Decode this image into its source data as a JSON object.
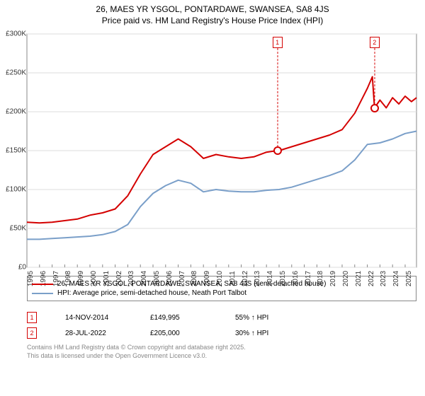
{
  "title_line1": "26, MAES YR YSGOL, PONTARDAWE, SWANSEA, SA8 4JS",
  "title_line2": "Price paid vs. HM Land Registry's House Price Index (HPI)",
  "chart": {
    "type": "line",
    "background_color": "#ffffff",
    "grid_color": "#dddddd",
    "axis_color": "#888888",
    "xlim": [
      1995,
      2025.9
    ],
    "ylim": [
      0,
      300000
    ],
    "ytick_step": 50000,
    "yticks_labels": [
      "£0",
      "£50K",
      "£100K",
      "£150K",
      "£200K",
      "£250K",
      "£300K"
    ],
    "xticks": [
      1995,
      1996,
      1997,
      1998,
      1999,
      2000,
      2001,
      2002,
      2003,
      2004,
      2005,
      2006,
      2007,
      2008,
      2009,
      2010,
      2011,
      2012,
      2013,
      2014,
      2015,
      2016,
      2017,
      2018,
      2019,
      2020,
      2021,
      2022,
      2023,
      2024,
      2025
    ],
    "series": [
      {
        "name": "property",
        "color": "#d40000",
        "line_width": 2,
        "legend": "26, MAES YR YSGOL, PONTARDAWE, SWANSEA, SA8 4JS (semi-detached house)",
        "points": [
          [
            1995,
            58000
          ],
          [
            1996,
            57000
          ],
          [
            1997,
            58000
          ],
          [
            1998,
            60000
          ],
          [
            1999,
            62000
          ],
          [
            2000,
            67000
          ],
          [
            2001,
            70000
          ],
          [
            2002,
            75000
          ],
          [
            2003,
            92000
          ],
          [
            2004,
            120000
          ],
          [
            2005,
            145000
          ],
          [
            2006,
            155000
          ],
          [
            2007,
            165000
          ],
          [
            2008,
            155000
          ],
          [
            2009,
            140000
          ],
          [
            2010,
            145000
          ],
          [
            2011,
            142000
          ],
          [
            2012,
            140000
          ],
          [
            2013,
            142000
          ],
          [
            2014,
            148000
          ],
          [
            2014.87,
            149995
          ],
          [
            2015,
            150000
          ],
          [
            2016,
            155000
          ],
          [
            2017,
            160000
          ],
          [
            2018,
            165000
          ],
          [
            2019,
            170000
          ],
          [
            2020,
            177000
          ],
          [
            2021,
            198000
          ],
          [
            2022,
            230000
          ],
          [
            2022.4,
            245000
          ],
          [
            2022.57,
            205000
          ],
          [
            2023,
            215000
          ],
          [
            2023.5,
            205000
          ],
          [
            2024,
            218000
          ],
          [
            2024.5,
            210000
          ],
          [
            2025,
            220000
          ],
          [
            2025.5,
            213000
          ],
          [
            2025.9,
            218000
          ]
        ]
      },
      {
        "name": "hpi",
        "color": "#7a9fc9",
        "line_width": 2,
        "legend": "HPI: Average price, semi-detached house, Neath Port Talbot",
        "points": [
          [
            1995,
            36000
          ],
          [
            1996,
            36000
          ],
          [
            1997,
            37000
          ],
          [
            1998,
            38000
          ],
          [
            1999,
            39000
          ],
          [
            2000,
            40000
          ],
          [
            2001,
            42000
          ],
          [
            2002,
            46000
          ],
          [
            2003,
            55000
          ],
          [
            2004,
            78000
          ],
          [
            2005,
            95000
          ],
          [
            2006,
            105000
          ],
          [
            2007,
            112000
          ],
          [
            2008,
            108000
          ],
          [
            2009,
            97000
          ],
          [
            2010,
            100000
          ],
          [
            2011,
            98000
          ],
          [
            2012,
            97000
          ],
          [
            2013,
            97000
          ],
          [
            2014,
            99000
          ],
          [
            2015,
            100000
          ],
          [
            2016,
            103000
          ],
          [
            2017,
            108000
          ],
          [
            2018,
            113000
          ],
          [
            2019,
            118000
          ],
          [
            2020,
            124000
          ],
          [
            2021,
            138000
          ],
          [
            2022,
            158000
          ],
          [
            2023,
            160000
          ],
          [
            2024,
            165000
          ],
          [
            2025,
            172000
          ],
          [
            2025.9,
            175000
          ]
        ]
      }
    ],
    "markers": [
      {
        "id": "1",
        "x": 2014.87,
        "y": 149995,
        "color": "#d40000"
      },
      {
        "id": "2",
        "x": 2022.57,
        "y": 205000,
        "color": "#d40000"
      }
    ]
  },
  "events": [
    {
      "id": "1",
      "date": "14-NOV-2014",
      "price": "£149,995",
      "pct": "55% ↑ HPI",
      "color": "#d40000"
    },
    {
      "id": "2",
      "date": "28-JUL-2022",
      "price": "£205,000",
      "pct": "30% ↑ HPI",
      "color": "#d40000"
    }
  ],
  "footer_line1": "Contains HM Land Registry data © Crown copyright and database right 2025.",
  "footer_line2": "This data is licensed under the Open Government Licence v3.0."
}
